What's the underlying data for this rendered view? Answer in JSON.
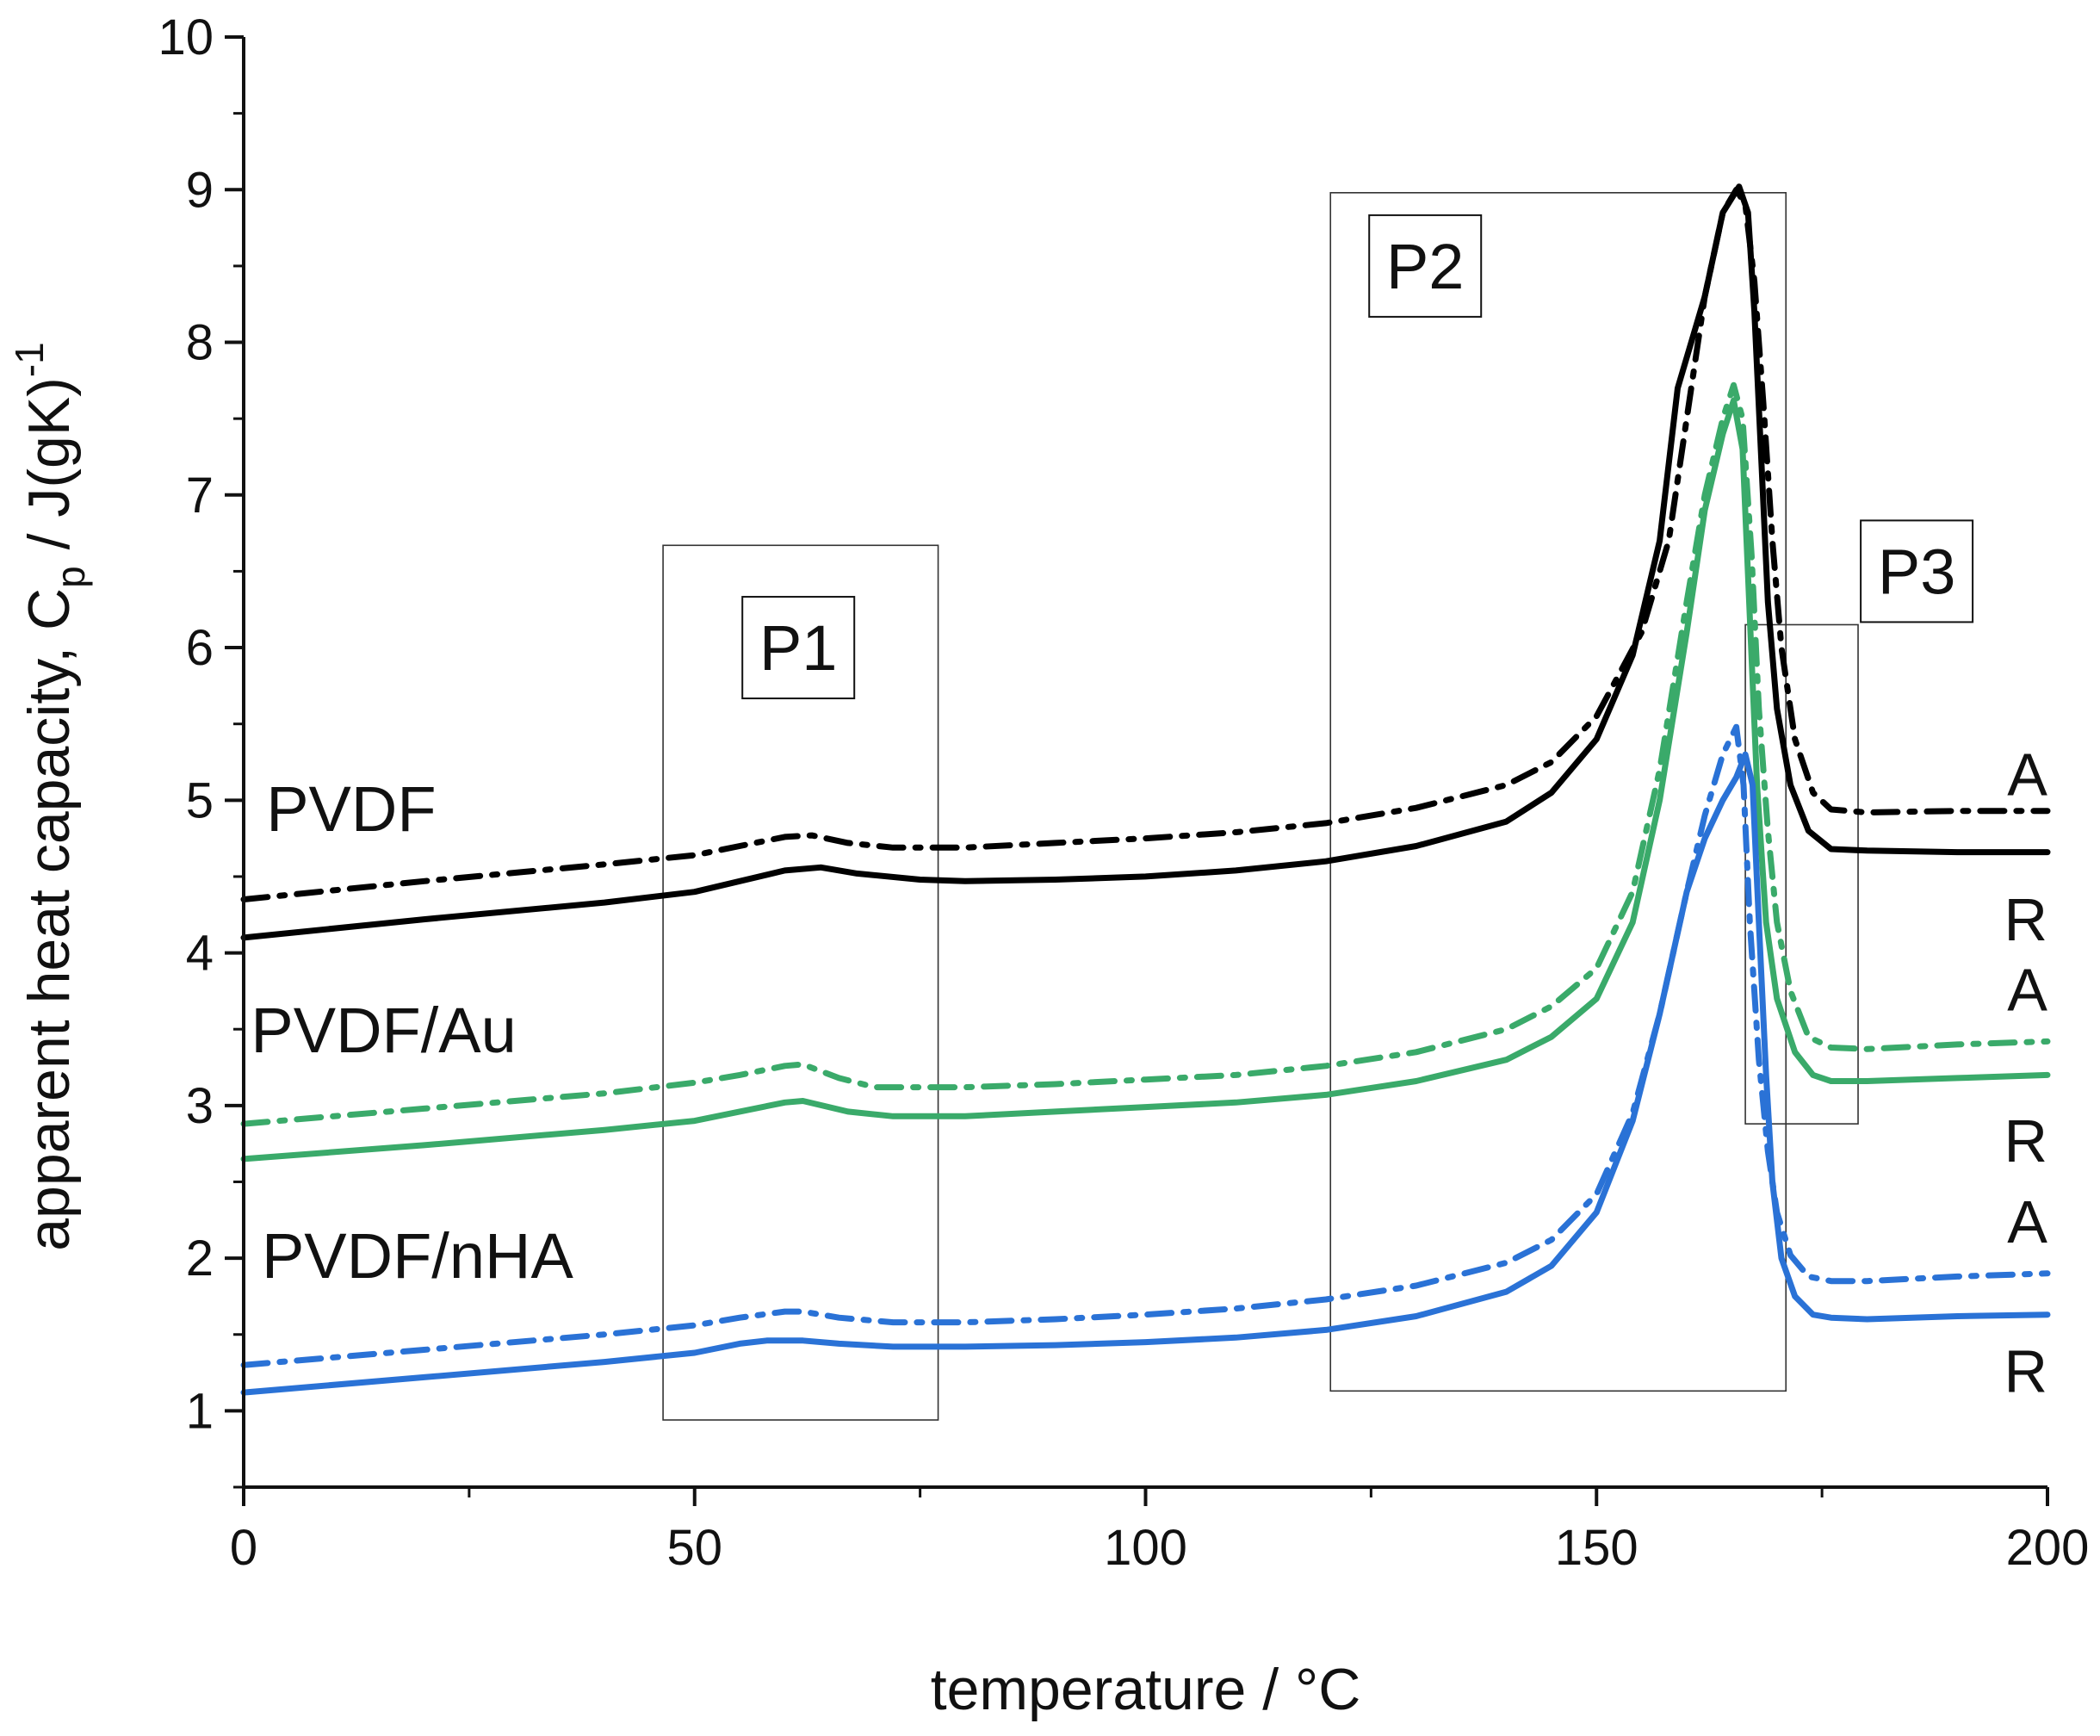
{
  "chart_data": {
    "type": "line",
    "title": "",
    "xlabel": "temperature / °C",
    "ylabel_main": "apparent heat capacity, C",
    "ylabel_sub": "p",
    "ylabel_tail": " / J(gK)",
    "ylabel_sup": "-1",
    "xlim": [
      0,
      200
    ],
    "ylim": [
      0.5,
      10
    ],
    "xticks": [
      0,
      50,
      100,
      150,
      200
    ],
    "yticks": [
      1,
      2,
      3,
      4,
      5,
      6,
      7,
      8,
      9,
      10
    ],
    "grid": false,
    "groups": [
      {
        "name": "PVDF",
        "color": "#000000"
      },
      {
        "name": "PVDF/Au",
        "color": "#3aaa6a"
      },
      {
        "name": "PVDF/nHA",
        "color": "#2a72d6"
      }
    ],
    "series": [
      {
        "group": "PVDF",
        "label": "A",
        "style": "dashdot",
        "color": "#000000",
        "points": [
          [
            0,
            4.35
          ],
          [
            20,
            4.47
          ],
          [
            40,
            4.58
          ],
          [
            50,
            4.64
          ],
          [
            55,
            4.7
          ],
          [
            60,
            4.76
          ],
          [
            63,
            4.77
          ],
          [
            67,
            4.72
          ],
          [
            72,
            4.69
          ],
          [
            80,
            4.69
          ],
          [
            90,
            4.72
          ],
          [
            100,
            4.75
          ],
          [
            110,
            4.79
          ],
          [
            120,
            4.85
          ],
          [
            130,
            4.95
          ],
          [
            140,
            5.1
          ],
          [
            145,
            5.25
          ],
          [
            150,
            5.55
          ],
          [
            155,
            6.1
          ],
          [
            158,
            6.7
          ],
          [
            160,
            7.5
          ],
          [
            162,
            8.3
          ],
          [
            164,
            8.85
          ],
          [
            165.5,
            9.0
          ],
          [
            166.5,
            8.9
          ],
          [
            167.5,
            8.4
          ],
          [
            168.5,
            7.6
          ],
          [
            169.5,
            6.7
          ],
          [
            170.5,
            6.0
          ],
          [
            172,
            5.4
          ],
          [
            174,
            5.05
          ],
          [
            176,
            4.94
          ],
          [
            180,
            4.92
          ],
          [
            190,
            4.93
          ],
          [
            200,
            4.93
          ]
        ]
      },
      {
        "group": "PVDF",
        "label": "R",
        "style": "solid",
        "color": "#000000",
        "points": [
          [
            0,
            4.1
          ],
          [
            20,
            4.22
          ],
          [
            40,
            4.33
          ],
          [
            50,
            4.4
          ],
          [
            55,
            4.47
          ],
          [
            60,
            4.54
          ],
          [
            64,
            4.56
          ],
          [
            68,
            4.52
          ],
          [
            75,
            4.48
          ],
          [
            80,
            4.47
          ],
          [
            90,
            4.48
          ],
          [
            100,
            4.5
          ],
          [
            110,
            4.54
          ],
          [
            120,
            4.6
          ],
          [
            130,
            4.7
          ],
          [
            140,
            4.86
          ],
          [
            145,
            5.05
          ],
          [
            150,
            5.4
          ],
          [
            154,
            5.95
          ],
          [
            157,
            6.7
          ],
          [
            159,
            7.7
          ],
          [
            160,
            7.9
          ],
          [
            162,
            8.3
          ],
          [
            164,
            8.85
          ],
          [
            165.8,
            9.02
          ],
          [
            166.8,
            8.85
          ],
          [
            167.5,
            8.2
          ],
          [
            168.3,
            7.2
          ],
          [
            169,
            6.3
          ],
          [
            170,
            5.6
          ],
          [
            171.5,
            5.1
          ],
          [
            173.5,
            4.8
          ],
          [
            176,
            4.68
          ],
          [
            180,
            4.67
          ],
          [
            190,
            4.66
          ],
          [
            200,
            4.66
          ]
        ]
      },
      {
        "group": "PVDF/Au",
        "label": "A",
        "style": "dashdot",
        "color": "#3aaa6a",
        "points": [
          [
            0,
            2.88
          ],
          [
            20,
            2.98
          ],
          [
            40,
            3.08
          ],
          [
            50,
            3.15
          ],
          [
            55,
            3.2
          ],
          [
            60,
            3.26
          ],
          [
            62,
            3.27
          ],
          [
            66,
            3.18
          ],
          [
            70,
            3.12
          ],
          [
            80,
            3.12
          ],
          [
            90,
            3.14
          ],
          [
            100,
            3.17
          ],
          [
            110,
            3.2
          ],
          [
            120,
            3.26
          ],
          [
            130,
            3.35
          ],
          [
            140,
            3.5
          ],
          [
            145,
            3.65
          ],
          [
            150,
            3.9
          ],
          [
            154,
            4.4
          ],
          [
            157,
            5.2
          ],
          [
            160,
            6.3
          ],
          [
            162,
            7.0
          ],
          [
            164,
            7.5
          ],
          [
            165.2,
            7.72
          ],
          [
            166.2,
            7.5
          ],
          [
            167.2,
            6.6
          ],
          [
            168,
            5.6
          ],
          [
            169,
            4.8
          ],
          [
            170,
            4.2
          ],
          [
            171.5,
            3.75
          ],
          [
            173.5,
            3.45
          ],
          [
            176,
            3.38
          ],
          [
            180,
            3.37
          ],
          [
            190,
            3.4
          ],
          [
            200,
            3.42
          ]
        ]
      },
      {
        "group": "PVDF/Au",
        "label": "R",
        "style": "solid",
        "color": "#3aaa6a",
        "points": [
          [
            0,
            2.65
          ],
          [
            20,
            2.74
          ],
          [
            40,
            2.84
          ],
          [
            50,
            2.9
          ],
          [
            55,
            2.96
          ],
          [
            60,
            3.02
          ],
          [
            62,
            3.03
          ],
          [
            67,
            2.96
          ],
          [
            72,
            2.93
          ],
          [
            80,
            2.93
          ],
          [
            90,
            2.96
          ],
          [
            100,
            2.99
          ],
          [
            110,
            3.02
          ],
          [
            120,
            3.07
          ],
          [
            130,
            3.16
          ],
          [
            140,
            3.3
          ],
          [
            145,
            3.45
          ],
          [
            150,
            3.7
          ],
          [
            154,
            4.2
          ],
          [
            157,
            5.0
          ],
          [
            160,
            6.1
          ],
          [
            162,
            6.9
          ],
          [
            164,
            7.4
          ],
          [
            165.2,
            7.62
          ],
          [
            166.2,
            7.3
          ],
          [
            167,
            6.2
          ],
          [
            167.8,
            5.1
          ],
          [
            168.8,
            4.2
          ],
          [
            170,
            3.7
          ],
          [
            172,
            3.35
          ],
          [
            174,
            3.2
          ],
          [
            176,
            3.16
          ],
          [
            180,
            3.16
          ],
          [
            190,
            3.18
          ],
          [
            200,
            3.2
          ]
        ]
      },
      {
        "group": "PVDF/nHA",
        "label": "A",
        "style": "dashdot",
        "color": "#2a72d6",
        "points": [
          [
            0,
            1.3
          ],
          [
            20,
            1.4
          ],
          [
            40,
            1.5
          ],
          [
            50,
            1.56
          ],
          [
            55,
            1.61
          ],
          [
            60,
            1.65
          ],
          [
            62,
            1.65
          ],
          [
            66,
            1.61
          ],
          [
            72,
            1.58
          ],
          [
            80,
            1.58
          ],
          [
            90,
            1.6
          ],
          [
            100,
            1.63
          ],
          [
            110,
            1.67
          ],
          [
            120,
            1.73
          ],
          [
            130,
            1.82
          ],
          [
            140,
            1.97
          ],
          [
            145,
            2.12
          ],
          [
            150,
            2.42
          ],
          [
            154,
            2.95
          ],
          [
            157,
            3.6
          ],
          [
            160,
            4.4
          ],
          [
            162,
            4.9
          ],
          [
            164,
            5.3
          ],
          [
            165.5,
            5.48
          ],
          [
            166.3,
            5.1
          ],
          [
            167,
            4.2
          ],
          [
            168,
            3.3
          ],
          [
            169,
            2.7
          ],
          [
            170,
            2.3
          ],
          [
            171.5,
            2.02
          ],
          [
            173.5,
            1.88
          ],
          [
            176,
            1.85
          ],
          [
            180,
            1.85
          ],
          [
            190,
            1.88
          ],
          [
            200,
            1.9
          ]
        ]
      },
      {
        "group": "PVDF/nHA",
        "label": "R",
        "style": "solid",
        "color": "#2a72d6",
        "points": [
          [
            0,
            1.12
          ],
          [
            20,
            1.22
          ],
          [
            40,
            1.32
          ],
          [
            50,
            1.38
          ],
          [
            55,
            1.44
          ],
          [
            58,
            1.46
          ],
          [
            62,
            1.46
          ],
          [
            66,
            1.44
          ],
          [
            72,
            1.42
          ],
          [
            80,
            1.42
          ],
          [
            90,
            1.43
          ],
          [
            100,
            1.45
          ],
          [
            110,
            1.48
          ],
          [
            120,
            1.53
          ],
          [
            130,
            1.62
          ],
          [
            140,
            1.78
          ],
          [
            145,
            1.95
          ],
          [
            150,
            2.3
          ],
          [
            154,
            2.9
          ],
          [
            157,
            3.6
          ],
          [
            160,
            4.4
          ],
          [
            162,
            4.75
          ],
          [
            164,
            5.0
          ],
          [
            165.5,
            5.15
          ],
          [
            166.5,
            5.3
          ],
          [
            167.3,
            5.1
          ],
          [
            168,
            4.2
          ],
          [
            168.8,
            3.2
          ],
          [
            169.5,
            2.5
          ],
          [
            170.5,
            2.0
          ],
          [
            172,
            1.75
          ],
          [
            174,
            1.63
          ],
          [
            176,
            1.61
          ],
          [
            180,
            1.6
          ],
          [
            190,
            1.62
          ],
          [
            200,
            1.63
          ]
        ]
      }
    ],
    "regions": [
      {
        "label": "P1",
        "x": [
          46.5,
          77
        ],
        "y": [
          0.94,
          6.67
        ],
        "label_at": [
          61.5,
          6.0
        ]
      },
      {
        "label": "P2",
        "x": [
          120.5,
          171
        ],
        "y": [
          1.13,
          8.98
        ],
        "label_at": [
          131,
          8.5
        ]
      },
      {
        "label": "P3",
        "x": [
          166.5,
          179
        ],
        "y": [
          2.88,
          6.15
        ],
        "label_at": [
          185.5,
          6.5
        ]
      }
    ],
    "end_labels": [
      {
        "text": "A",
        "y": 5.18
      },
      {
        "text": "R",
        "y": 4.23
      },
      {
        "text": "A",
        "y": 3.77
      },
      {
        "text": "R",
        "y": 2.78
      },
      {
        "text": "A",
        "y": 2.25
      },
      {
        "text": "R",
        "y": 1.27
      }
    ],
    "series_labels": [
      {
        "text": "PVDF",
        "x": 2.5,
        "y": 4.8
      },
      {
        "text": "PVDF/Au",
        "x": 0.8,
        "y": 3.35
      },
      {
        "text": "PVDF/nHA",
        "x": 2.0,
        "y": 1.87
      }
    ]
  }
}
